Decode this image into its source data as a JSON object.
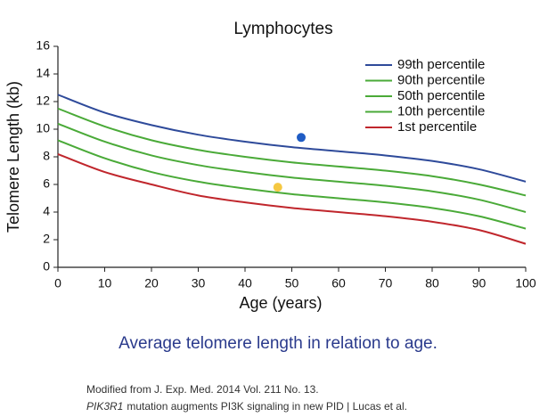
{
  "chart_data": {
    "type": "line",
    "title": "Lymphocytes",
    "x_label": "Age (years)",
    "y_label": "Telomere Length (kb)",
    "x": [
      0,
      10,
      20,
      30,
      40,
      50,
      60,
      70,
      80,
      90,
      100
    ],
    "series": [
      {
        "name": "99th percentile",
        "color": "#2e4a9a",
        "values": [
          12.5,
          11.2,
          10.3,
          9.6,
          9.1,
          8.7,
          8.4,
          8.1,
          7.7,
          7.1,
          6.2
        ]
      },
      {
        "name": "90th percentile",
        "color": "#4aaa38",
        "values": [
          11.5,
          10.2,
          9.2,
          8.5,
          8.0,
          7.6,
          7.3,
          7.0,
          6.6,
          6.0,
          5.2
        ]
      },
      {
        "name": "50th percentile",
        "color": "#4aaa38",
        "values": [
          10.4,
          9.1,
          8.1,
          7.4,
          6.9,
          6.5,
          6.2,
          5.9,
          5.5,
          4.9,
          4.0
        ]
      },
      {
        "name": "10th percentile",
        "color": "#4aaa38",
        "values": [
          9.2,
          7.9,
          6.9,
          6.2,
          5.7,
          5.3,
          5.0,
          4.7,
          4.3,
          3.7,
          2.8
        ]
      },
      {
        "name": "1st percentile",
        "color": "#c0262c",
        "values": [
          8.2,
          6.9,
          6.0,
          5.2,
          4.7,
          4.3,
          4.0,
          3.7,
          3.3,
          2.7,
          1.7
        ]
      }
    ],
    "points": [
      {
        "x": 52,
        "y": 9.4,
        "color": "#1f5cc4"
      },
      {
        "x": 47,
        "y": 5.8,
        "color": "#f5c842"
      }
    ],
    "xlim": [
      0,
      100
    ],
    "xticks": [
      0,
      10,
      20,
      30,
      40,
      50,
      60,
      70,
      80,
      90,
      100
    ],
    "ylim": [
      0,
      16
    ],
    "yticks": [
      0,
      2,
      4,
      6,
      8,
      10,
      12,
      14,
      16
    ],
    "grid": false,
    "legend": "upper right"
  },
  "caption": "Average telomere length in relation to age.",
  "notes": {
    "line1": "Modified from J. Exp. Med. 2014 Vol. 211 No. 13.",
    "line2_italic": "PIK3R1",
    "line2_rest": "mutation augments PI3K signaling in new PID | Lucas et al."
  }
}
